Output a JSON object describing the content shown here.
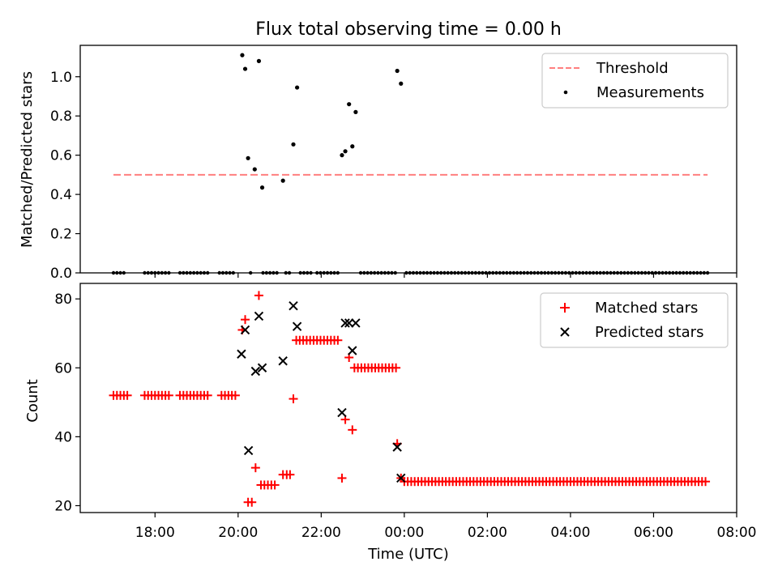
{
  "figure_title": "Flux total observing time = 0.00 h",
  "chart_data": [
    {
      "type": "scatter",
      "xlabel": "",
      "ylabel": "Matched/Predicted stars",
      "xlim_hours": [
        16.2,
        32.0
      ],
      "ylim": [
        0,
        1.16
      ],
      "yticks": [
        "0.0",
        "0.2",
        "0.4",
        "0.6",
        "0.8",
        "1.0"
      ],
      "grid": false,
      "legend_position": "top-right",
      "threshold": {
        "name": "Threshold",
        "value": 0.5,
        "x_from": 17.0,
        "x_to": 31.3,
        "color": "#ff7f7f",
        "style": "dashed"
      },
      "series": [
        {
          "name": "Measurements",
          "color": "#000000",
          "marker": "dot",
          "points": [
            [
              20.1,
              1.11
            ],
            [
              20.17,
              1.04
            ],
            [
              20.24,
              0.585
            ],
            [
              20.4,
              0.528
            ],
            [
              20.5,
              1.08
            ],
            [
              20.58,
              0.435
            ],
            [
              21.08,
              0.47
            ],
            [
              21.33,
              0.655
            ],
            [
              21.42,
              0.945
            ],
            [
              22.5,
              0.6
            ],
            [
              22.58,
              0.62
            ],
            [
              22.67,
              0.86
            ],
            [
              22.75,
              0.645
            ],
            [
              22.83,
              0.82
            ],
            [
              23.83,
              1.03
            ],
            [
              23.92,
              0.965
            ]
          ],
          "zero_runs": [
            [
              17.0,
              17.3
            ],
            [
              17.75,
              18.35
            ],
            [
              18.6,
              19.3
            ],
            [
              19.55,
              19.95
            ],
            [
              20.3,
              20.3
            ],
            [
              20.6,
              21.0
            ],
            [
              21.15,
              21.3
            ],
            [
              21.5,
              21.8
            ],
            [
              21.9,
              22.45
            ],
            [
              22.95,
              23.8
            ],
            [
              24.05,
              31.35
            ]
          ]
        }
      ]
    },
    {
      "type": "scatter",
      "xlabel": "Time (UTC)",
      "ylabel": "Count",
      "xlim_hours": [
        16.2,
        32.0
      ],
      "ylim": [
        18,
        84.5
      ],
      "xticks": [
        {
          "hour": 18,
          "label": "18:00"
        },
        {
          "hour": 20,
          "label": "20:00"
        },
        {
          "hour": 22,
          "label": "22:00"
        },
        {
          "hour": 24,
          "label": "00:00"
        },
        {
          "hour": 26,
          "label": "02:00"
        },
        {
          "hour": 28,
          "label": "04:00"
        },
        {
          "hour": 30,
          "label": "06:00"
        },
        {
          "hour": 32,
          "label": "08:00"
        }
      ],
      "yticks": [
        "20",
        "40",
        "60",
        "80"
      ],
      "grid": false,
      "legend_position": "top-right",
      "series": [
        {
          "name": "Matched stars",
          "color": "#ff0000",
          "marker": "plus",
          "runs": [
            {
              "from": 17.0,
              "to": 17.4,
              "y": 52
            },
            {
              "from": 17.75,
              "to": 18.35,
              "y": 52
            },
            {
              "from": 18.6,
              "to": 19.3,
              "y": 52
            },
            {
              "from": 19.6,
              "to": 19.95,
              "y": 52
            },
            {
              "from": 20.55,
              "to": 20.95,
              "y": 26
            },
            {
              "from": 21.4,
              "to": 22.45,
              "y": 68
            },
            {
              "from": 22.8,
              "to": 23.8,
              "y": 60
            },
            {
              "from": 24.0,
              "to": 31.3,
              "y": 27
            }
          ],
          "points": [
            [
              20.1,
              71
            ],
            [
              20.17,
              74
            ],
            [
              20.24,
              21
            ],
            [
              20.33,
              21
            ],
            [
              20.42,
              31
            ],
            [
              20.5,
              81
            ],
            [
              21.08,
              29
            ],
            [
              21.17,
              29
            ],
            [
              21.25,
              29
            ],
            [
              21.33,
              51
            ],
            [
              22.5,
              28
            ],
            [
              22.58,
              45
            ],
            [
              22.67,
              63
            ],
            [
              22.75,
              42
            ],
            [
              23.83,
              38
            ],
            [
              23.92,
              28
            ]
          ]
        },
        {
          "name": "Predicted stars",
          "color": "#000000",
          "marker": "x",
          "points": [
            [
              20.08,
              64
            ],
            [
              20.17,
              71
            ],
            [
              20.25,
              36
            ],
            [
              20.42,
              59
            ],
            [
              20.5,
              75
            ],
            [
              20.58,
              60
            ],
            [
              21.08,
              62
            ],
            [
              21.33,
              78
            ],
            [
              21.42,
              72
            ],
            [
              22.5,
              47
            ],
            [
              22.58,
              73
            ],
            [
              22.67,
              73
            ],
            [
              22.75,
              65
            ],
            [
              22.83,
              73
            ],
            [
              23.83,
              37
            ],
            [
              23.92,
              28
            ]
          ]
        }
      ]
    }
  ]
}
